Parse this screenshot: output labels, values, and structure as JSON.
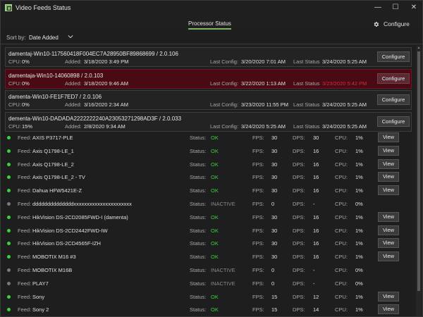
{
  "window": {
    "title": "Video Feeds Status",
    "controls": {
      "minimize": "—",
      "maximize": "☐",
      "close": "✕"
    }
  },
  "header": {
    "tab_label": "Processor Status",
    "configure_label": "Configure"
  },
  "sort": {
    "label": "Sort by:",
    "value": "Date Added"
  },
  "labels": {
    "cpu": "CPU:",
    "added": "Added:",
    "last_config": "Last Config:",
    "last_status": "Last Status",
    "configure": "Configure",
    "feed": "Feed:",
    "status": "Status:",
    "fps": "FPS:",
    "dps": "DPS:",
    "view": "View"
  },
  "processors": [
    {
      "name": "damentaj-Win10-117560418F004EC7A28950BF89868699 / 2.0.106",
      "cpu": "0%",
      "added": "3/18/2020 3:49 PM",
      "last_config": "3/20/2020 7:01 AM",
      "last_status": "3/24/2020 5:25 AM",
      "alert": false
    },
    {
      "name": "damentaja-Win10-14060898 / 2.0.103",
      "cpu": "0%",
      "added": "3/18/2020 9:46 AM",
      "last_config": "3/22/2020 1:13 AM",
      "last_status": "3/23/2020 5:42 PM",
      "alert": true
    },
    {
      "name": "damenta-Win10-FE1F7ED7 / 2.0.106",
      "cpu": "0%",
      "added": "3/16/2020 2:34 AM",
      "last_config": "3/23/2020 11:55 PM",
      "last_status": "3/24/2020 5:25 AM",
      "alert": false
    },
    {
      "name": "dementa-Win10-DADADA2222222240A23053271298AD3F / 2.0.033",
      "cpu": "15%",
      "added": "2/8/2020 9:34 AM",
      "last_config": "3/24/2020 5:25 AM",
      "last_status": "3/24/2020 5:25 AM",
      "alert": false
    }
  ],
  "feeds": [
    {
      "name": "AXIS P3717-PLE",
      "status": "OK",
      "fps": "30",
      "dps": "30",
      "cpu": "1%",
      "active": true,
      "view": true
    },
    {
      "name": "Axis Q1798-LE_1",
      "status": "OK",
      "fps": "30",
      "dps": "16",
      "cpu": "1%",
      "active": true,
      "view": true
    },
    {
      "name": "Axis Q1798-LE_2",
      "status": "OK",
      "fps": "30",
      "dps": "16",
      "cpu": "1%",
      "active": true,
      "view": true
    },
    {
      "name": "Axis Q1798-LE_2 - TV",
      "status": "OK",
      "fps": "30",
      "dps": "16",
      "cpu": "1%",
      "active": true,
      "view": true
    },
    {
      "name": "Dahua HFW5421E-Z",
      "status": "OK",
      "fps": "30",
      "dps": "16",
      "cpu": "1%",
      "active": true,
      "view": true
    },
    {
      "name": "ddddddddddddddxxxxxxxxxxxxxxxxxxxxxx",
      "status": "INACTIVE",
      "fps": "0",
      "dps": "-",
      "cpu": "0%",
      "active": false,
      "view": false
    },
    {
      "name": "HikVision DS-2CD2085FWD-I (damenta)",
      "status": "OK",
      "fps": "30",
      "dps": "16",
      "cpu": "1%",
      "active": true,
      "view": true
    },
    {
      "name": "HikVision DS-2CD2442FWD-IW",
      "status": "OK",
      "fps": "30",
      "dps": "16",
      "cpu": "1%",
      "active": true,
      "view": true
    },
    {
      "name": "HikVision DS-2CD4565F-IZH",
      "status": "OK",
      "fps": "30",
      "dps": "16",
      "cpu": "1%",
      "active": true,
      "view": true
    },
    {
      "name": "MOBOTIX M16 #3",
      "status": "OK",
      "fps": "30",
      "dps": "16",
      "cpu": "1%",
      "active": true,
      "view": true
    },
    {
      "name": "MOBOTIX M16B",
      "status": "INACTIVE",
      "fps": "0",
      "dps": "-",
      "cpu": "0%",
      "active": false,
      "view": false
    },
    {
      "name": "PLAY7",
      "status": "INACTIVE",
      "fps": "0",
      "dps": "-",
      "cpu": "0%",
      "active": false,
      "view": false
    },
    {
      "name": "Sony",
      "status": "OK",
      "fps": "15",
      "dps": "12",
      "cpu": "1%",
      "active": true,
      "view": true
    },
    {
      "name": "Sony 2",
      "status": "OK",
      "fps": "15",
      "dps": "14",
      "cpu": "1%",
      "active": true,
      "view": true
    }
  ],
  "colors": {
    "accent": "#7bb661",
    "ok": "#3bd13b",
    "alert_bg": "#4a0a14",
    "alert_text": "#d22c3e"
  }
}
